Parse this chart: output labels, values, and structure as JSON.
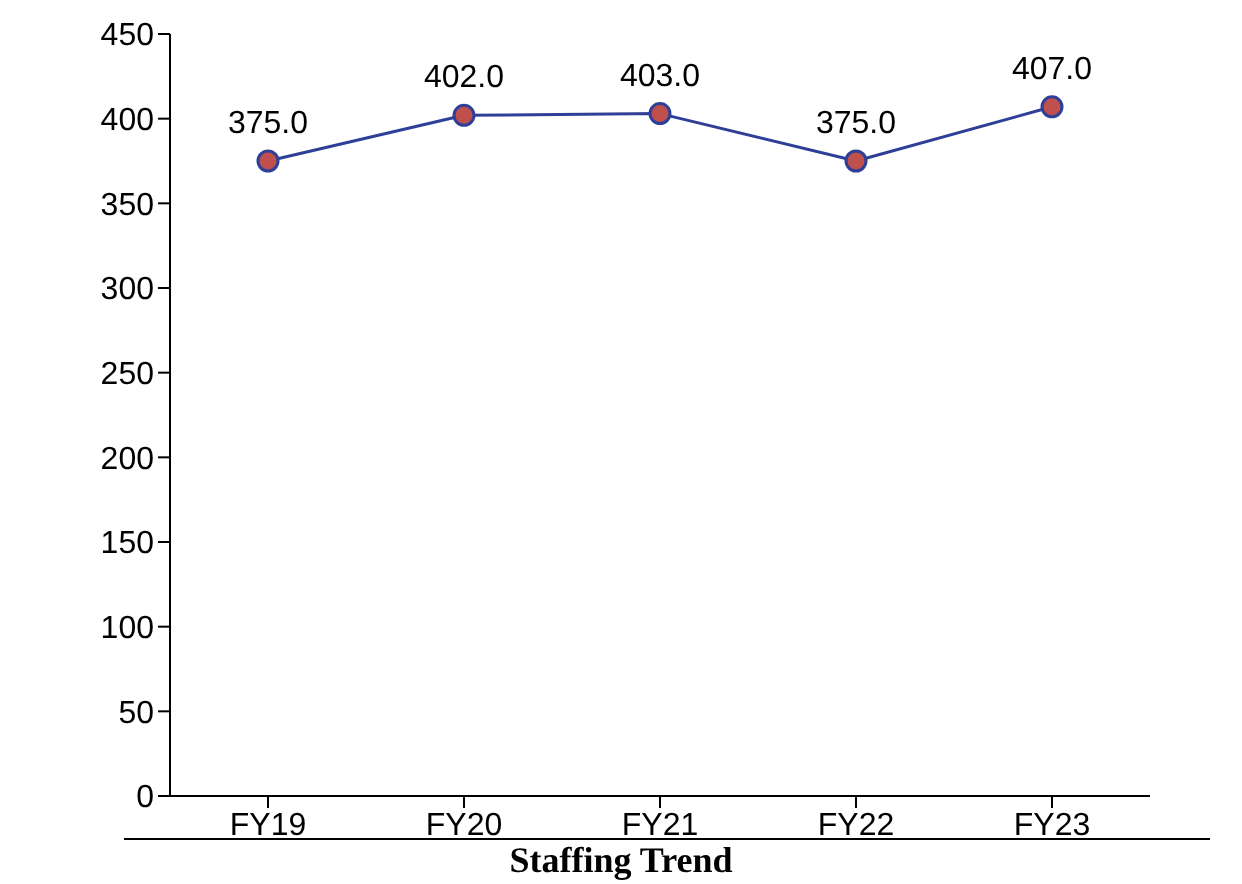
{
  "chart_data": {
    "type": "line",
    "title": "Staffing Trend",
    "categories": [
      "FY19",
      "FY20",
      "FY21",
      "FY22",
      "FY23"
    ],
    "series": [
      {
        "color": "#2e3f97",
        "values": [
          375,
          402,
          403,
          375,
          407
        ],
        "value_labels": [
          "375.0",
          "402.0",
          "403.0",
          "375.0",
          "407.0"
        ]
      }
    ],
    "ylim": [
      0,
      450
    ],
    "yticks": [
      0,
      50,
      100,
      150,
      200,
      250,
      300,
      350,
      400,
      450
    ],
    "grid": false,
    "legend": false,
    "marker": "circle",
    "line_style": "solid"
  }
}
